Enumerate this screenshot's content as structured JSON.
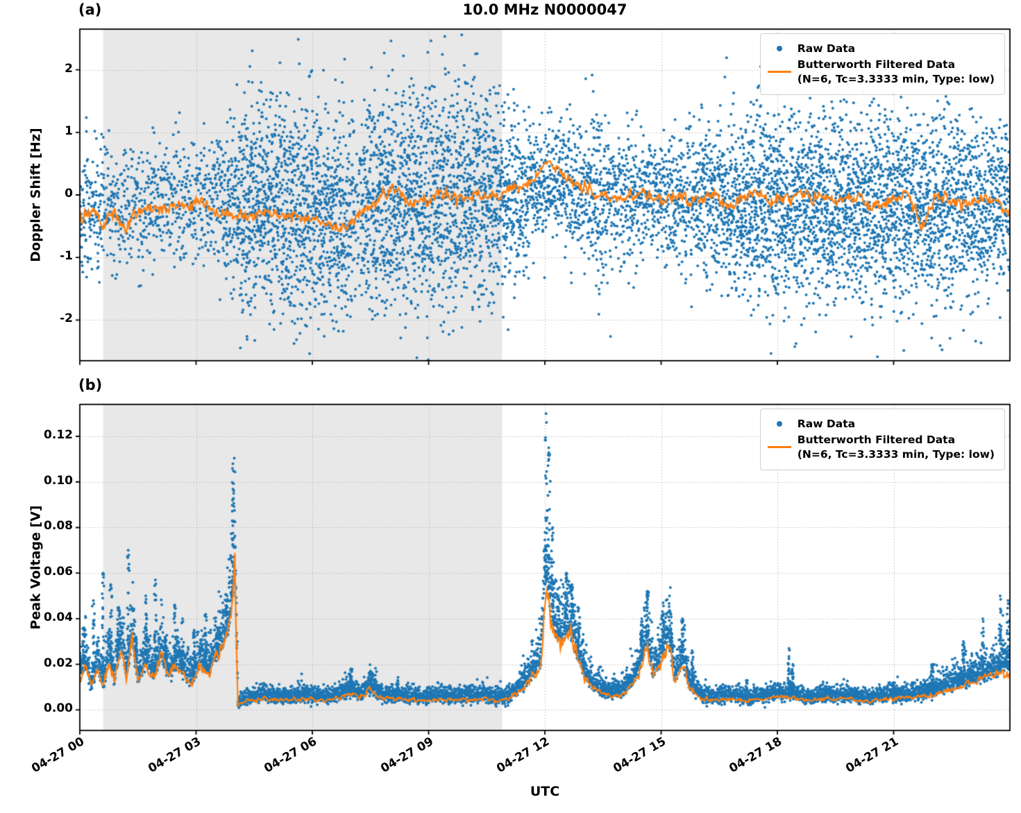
{
  "title": "10.0 MHz N0000047",
  "xlabel": "UTC",
  "legend": {
    "raw_label": "Raw Data",
    "filtered_label": "Butterworth Filtered Data",
    "filtered_sublabel": "(N=6, Tc=3.3333 min, Type: low)"
  },
  "colors": {
    "raw": "#1f77b4",
    "filtered": "#ff7f0e",
    "shade": "#e8e8e8",
    "grid": "#b8b8b8",
    "axis": "#000000"
  },
  "time_range_hours": [
    0,
    24
  ],
  "xtick_hours": [
    0,
    3,
    6,
    9,
    12,
    15,
    18,
    21
  ],
  "xtick_labels": [
    "04-27 00",
    "04-27 03",
    "04-27 06",
    "04-27 09",
    "04-27 12",
    "04-27 15",
    "04-27 18",
    "04-27 21"
  ],
  "shade_hours": [
    0.6,
    10.9
  ],
  "chart_data": [
    {
      "type": "scatter",
      "panel_label": "(a)",
      "ylabel": "Doppler Shift [Hz]",
      "ylim": [
        -2.65,
        2.65
      ],
      "yticks": [
        -2,
        -1,
        0,
        1,
        2
      ],
      "ytick_labels": [
        "-2",
        "-1",
        "0",
        "1",
        "2"
      ],
      "series_names": [
        "Raw Data",
        "Butterworth Filtered Data (N=6, Tc=3.3333 min, Type: low)"
      ],
      "raw_envelope": [
        [
          0,
          -0.25,
          0.55,
          0.55
        ],
        [
          0.5,
          -0.2,
          0.55,
          0.5
        ],
        [
          1,
          -0.2,
          0.5,
          0.42
        ],
        [
          1.5,
          -0.18,
          0.5,
          0.4
        ],
        [
          2,
          -0.1,
          0.52,
          0.45
        ],
        [
          2.5,
          -0.1,
          0.5,
          0.42
        ],
        [
          3,
          -0.12,
          0.5,
          0.42
        ],
        [
          3.5,
          -0.15,
          0.55,
          0.5
        ],
        [
          3.9,
          -0.2,
          0.7,
          0.7
        ],
        [
          4.2,
          -0.2,
          0.9,
          1
        ],
        [
          5,
          -0.2,
          0.9,
          1
        ],
        [
          5.5,
          -0.22,
          0.9,
          1
        ],
        [
          6,
          -0.25,
          0.9,
          1
        ],
        [
          6.5,
          -0.4,
          0.85,
          1
        ],
        [
          7,
          -0.35,
          0.85,
          0.9
        ],
        [
          7.15,
          -0.3,
          0.55,
          0.3
        ],
        [
          7.35,
          -0.2,
          0.8,
          0.9
        ],
        [
          7.6,
          -0.1,
          0.9,
          1
        ],
        [
          8.5,
          -0.05,
          0.9,
          1
        ],
        [
          9.5,
          0,
          0.92,
          1
        ],
        [
          10.5,
          -0.05,
          0.85,
          1
        ],
        [
          10.9,
          -0.08,
          0.8,
          0.9
        ],
        [
          11.3,
          0,
          0.65,
          0.75
        ],
        [
          11.7,
          0.15,
          0.5,
          0.7
        ],
        [
          12,
          0.3,
          0.42,
          0.65
        ],
        [
          12.4,
          0.22,
          0.45,
          0.65
        ],
        [
          12.8,
          0.1,
          0.5,
          0.65
        ],
        [
          13.1,
          0,
          0.55,
          0.7
        ],
        [
          13.35,
          -0.05,
          0.8,
          0.8
        ],
        [
          13.6,
          -0.1,
          0.55,
          0.6
        ],
        [
          14,
          -0.1,
          0.5,
          0.6
        ],
        [
          14.3,
          -0.05,
          0.6,
          0.65
        ],
        [
          14.6,
          0,
          0.48,
          0.6
        ],
        [
          15,
          -0.05,
          0.5,
          0.6
        ],
        [
          15.4,
          -0.1,
          0.55,
          0.65
        ],
        [
          15.8,
          -0.1,
          0.55,
          0.65
        ],
        [
          16.2,
          -0.1,
          0.7,
          0.8
        ],
        [
          16.6,
          -0.12,
          0.72,
          0.85
        ],
        [
          17,
          -0.15,
          0.75,
          0.95
        ],
        [
          17.5,
          -0.15,
          0.78,
          1
        ],
        [
          18.5,
          -0.2,
          0.78,
          1
        ],
        [
          19.5,
          -0.15,
          0.78,
          1
        ],
        [
          20.5,
          -0.25,
          0.8,
          1
        ],
        [
          21.5,
          -0.2,
          0.78,
          1
        ],
        [
          22.5,
          -0.15,
          0.72,
          0.95
        ],
        [
          23,
          -0.2,
          0.72,
          0.9
        ],
        [
          23.5,
          -0.2,
          0.68,
          0.85
        ],
        [
          24,
          -0.2,
          0.62,
          0.8
        ]
      ],
      "filtered_points": [
        [
          0,
          -0.35
        ],
        [
          0.3,
          -0.25
        ],
        [
          0.6,
          -0.45
        ],
        [
          0.9,
          -0.3
        ],
        [
          1.2,
          -0.5
        ],
        [
          1.5,
          -0.25
        ],
        [
          1.8,
          -0.15
        ],
        [
          2.1,
          -0.25
        ],
        [
          2.4,
          -0.15
        ],
        [
          2.7,
          -0.2
        ],
        [
          3,
          -0.08
        ],
        [
          3.3,
          -0.2
        ],
        [
          3.6,
          -0.28
        ],
        [
          3.9,
          -0.33
        ],
        [
          4.2,
          -0.3
        ],
        [
          4.5,
          -0.38
        ],
        [
          4.8,
          -0.25
        ],
        [
          5.1,
          -0.32
        ],
        [
          5.4,
          -0.28
        ],
        [
          5.7,
          -0.35
        ],
        [
          6,
          -0.38
        ],
        [
          6.3,
          -0.45
        ],
        [
          6.6,
          -0.55
        ],
        [
          6.9,
          -0.45
        ],
        [
          7.2,
          -0.3
        ],
        [
          7.5,
          -0.15
        ],
        [
          7.8,
          0
        ],
        [
          8.1,
          0.1
        ],
        [
          8.4,
          -0.05
        ],
        [
          8.7,
          -0.12
        ],
        [
          9,
          -0.08
        ],
        [
          9.3,
          0.05
        ],
        [
          9.6,
          -0.02
        ],
        [
          9.9,
          -0.1
        ],
        [
          10.2,
          -0.02
        ],
        [
          10.5,
          0
        ],
        [
          10.8,
          -0.05
        ],
        [
          11.1,
          0.05
        ],
        [
          11.4,
          0.12
        ],
        [
          11.7,
          0.2
        ],
        [
          12,
          0.55
        ],
        [
          12.2,
          0.5
        ],
        [
          12.4,
          0.35
        ],
        [
          12.7,
          0.2
        ],
        [
          13,
          0.1
        ],
        [
          13.3,
          0.05
        ],
        [
          13.6,
          -0.02
        ],
        [
          13.9,
          -0.08
        ],
        [
          14.2,
          0
        ],
        [
          14.5,
          0.06
        ],
        [
          14.8,
          -0.05
        ],
        [
          15.1,
          -0.1
        ],
        [
          15.4,
          -0.02
        ],
        [
          15.7,
          -0.08
        ],
        [
          16,
          -0.12
        ],
        [
          16.3,
          -0.02
        ],
        [
          16.6,
          -0.1
        ],
        [
          16.9,
          -0.15
        ],
        [
          17.2,
          -0.02
        ],
        [
          17.5,
          0.02
        ],
        [
          17.8,
          -0.1
        ],
        [
          18.1,
          -0.02
        ],
        [
          18.4,
          -0.08
        ],
        [
          18.7,
          0
        ],
        [
          19,
          -0.1
        ],
        [
          19.3,
          -0.02
        ],
        [
          19.6,
          -0.08
        ],
        [
          19.9,
          -0.02
        ],
        [
          20.2,
          -0.1
        ],
        [
          20.5,
          -0.18
        ],
        [
          20.8,
          -0.1
        ],
        [
          21.1,
          -0.05
        ],
        [
          21.4,
          0.02
        ],
        [
          21.7,
          -0.55
        ],
        [
          22,
          -0.1
        ],
        [
          22.3,
          -0.02
        ],
        [
          22.6,
          -0.12
        ],
        [
          22.9,
          -0.18
        ],
        [
          23.2,
          -0.1
        ],
        [
          23.5,
          -0.12
        ],
        [
          23.8,
          -0.18
        ],
        [
          24,
          -0.25
        ]
      ],
      "filtered_jitter": 0.14
    },
    {
      "type": "scatter",
      "panel_label": "(b)",
      "ylabel": "Peak Voltage [V]",
      "ylim": [
        -0.009,
        0.134
      ],
      "yticks": [
        0,
        0.02,
        0.04,
        0.06,
        0.08,
        0.1,
        0.12
      ],
      "ytick_labels": [
        "0.00",
        "0.02",
        "0.04",
        "0.06",
        "0.08",
        "0.10",
        "0.12"
      ],
      "series_names": [
        "Raw Data",
        "Butterworth Filtered Data (N=6, Tc=3.3333 min, Type: low)"
      ],
      "filtered_points": [
        [
          0,
          0.012
        ],
        [
          0.15,
          0.02
        ],
        [
          0.3,
          0.009
        ],
        [
          0.45,
          0.018
        ],
        [
          0.6,
          0.01
        ],
        [
          0.75,
          0.022
        ],
        [
          0.9,
          0.012
        ],
        [
          1.05,
          0.028
        ],
        [
          1.2,
          0.014
        ],
        [
          1.35,
          0.03
        ],
        [
          1.5,
          0.012
        ],
        [
          1.7,
          0.02
        ],
        [
          1.9,
          0.013
        ],
        [
          2.1,
          0.024
        ],
        [
          2.3,
          0.014
        ],
        [
          2.5,
          0.02
        ],
        [
          2.7,
          0.015
        ],
        [
          2.9,
          0.012
        ],
        [
          3.1,
          0.02
        ],
        [
          3.3,
          0.016
        ],
        [
          3.5,
          0.022
        ],
        [
          3.7,
          0.028
        ],
        [
          3.85,
          0.035
        ],
        [
          3.95,
          0.05
        ],
        [
          4,
          0.065
        ],
        [
          4.08,
          0.002
        ],
        [
          4.3,
          0.004
        ],
        [
          4.8,
          0.005
        ],
        [
          5.3,
          0.004
        ],
        [
          5.8,
          0.005
        ],
        [
          6.3,
          0.004
        ],
        [
          6.8,
          0.006
        ],
        [
          7,
          0.008
        ],
        [
          7.2,
          0.005
        ],
        [
          7.5,
          0.009
        ],
        [
          7.8,
          0.005
        ],
        [
          8.3,
          0.005
        ],
        [
          8.8,
          0.004
        ],
        [
          9.3,
          0.005
        ],
        [
          9.8,
          0.004
        ],
        [
          10.3,
          0.005
        ],
        [
          10.8,
          0.004
        ],
        [
          11.1,
          0.005
        ],
        [
          11.4,
          0.009
        ],
        [
          11.7,
          0.015
        ],
        [
          11.9,
          0.02
        ],
        [
          12,
          0.05
        ],
        [
          12.05,
          0.058
        ],
        [
          12.15,
          0.04
        ],
        [
          12.3,
          0.032
        ],
        [
          12.45,
          0.028
        ],
        [
          12.6,
          0.035
        ],
        [
          12.75,
          0.028
        ],
        [
          12.9,
          0.02
        ],
        [
          13.1,
          0.012
        ],
        [
          13.4,
          0.008
        ],
        [
          13.7,
          0.006
        ],
        [
          14,
          0.007
        ],
        [
          14.3,
          0.012
        ],
        [
          14.5,
          0.02
        ],
        [
          14.65,
          0.028
        ],
        [
          14.8,
          0.014
        ],
        [
          15,
          0.022
        ],
        [
          15.2,
          0.032
        ],
        [
          15.35,
          0.012
        ],
        [
          15.55,
          0.02
        ],
        [
          15.75,
          0.01
        ],
        [
          15.95,
          0.006
        ],
        [
          16.3,
          0.004
        ],
        [
          16.8,
          0.005
        ],
        [
          17.3,
          0.004
        ],
        [
          17.8,
          0.005
        ],
        [
          18.3,
          0.006
        ],
        [
          18.8,
          0.004
        ],
        [
          19.3,
          0.005
        ],
        [
          19.8,
          0.005
        ],
        [
          20.3,
          0.004
        ],
        [
          20.8,
          0.005
        ],
        [
          21.3,
          0.005
        ],
        [
          21.8,
          0.006
        ],
        [
          22.2,
          0.008
        ],
        [
          22.6,
          0.01
        ],
        [
          23,
          0.012
        ],
        [
          23.4,
          0.014
        ],
        [
          23.7,
          0.016
        ],
        [
          24,
          0.018
        ]
      ],
      "raw_spikes": [
        [
          0.1,
          0.036
        ],
        [
          0.35,
          0.048
        ],
        [
          0.6,
          0.06
        ],
        [
          0.8,
          0.055
        ],
        [
          1,
          0.045
        ],
        [
          1.25,
          0.07
        ],
        [
          1.45,
          0.032
        ],
        [
          1.7,
          0.05
        ],
        [
          1.95,
          0.057
        ],
        [
          2.2,
          0.032
        ],
        [
          2.45,
          0.046
        ],
        [
          2.65,
          0.04
        ],
        [
          2.95,
          0.035
        ],
        [
          3.25,
          0.042
        ],
        [
          3.55,
          0.036
        ],
        [
          3.8,
          0.05
        ],
        [
          3.95,
          0.108
        ],
        [
          7,
          0.018
        ],
        [
          7.5,
          0.017
        ],
        [
          8.2,
          0.013
        ],
        [
          9,
          0.01
        ],
        [
          12.03,
          0.13
        ],
        [
          12.1,
          0.115
        ],
        [
          12.2,
          0.08
        ],
        [
          12.35,
          0.05
        ],
        [
          12.55,
          0.06
        ],
        [
          12.7,
          0.055
        ],
        [
          12.85,
          0.045
        ],
        [
          13,
          0.022
        ],
        [
          14.5,
          0.04
        ],
        [
          14.65,
          0.052
        ],
        [
          15.05,
          0.047
        ],
        [
          15.25,
          0.042
        ],
        [
          15.55,
          0.04
        ],
        [
          15.8,
          0.026
        ],
        [
          17.2,
          0.013
        ],
        [
          18.3,
          0.027
        ],
        [
          18.4,
          0.02
        ],
        [
          21,
          0.012
        ],
        [
          22,
          0.02
        ],
        [
          22.8,
          0.03
        ],
        [
          23.3,
          0.04
        ],
        [
          23.75,
          0.05
        ],
        [
          23.95,
          0.048
        ]
      ],
      "raw_spread_rel": 0.35,
      "filtered_jitter_rel": 0.18
    }
  ]
}
